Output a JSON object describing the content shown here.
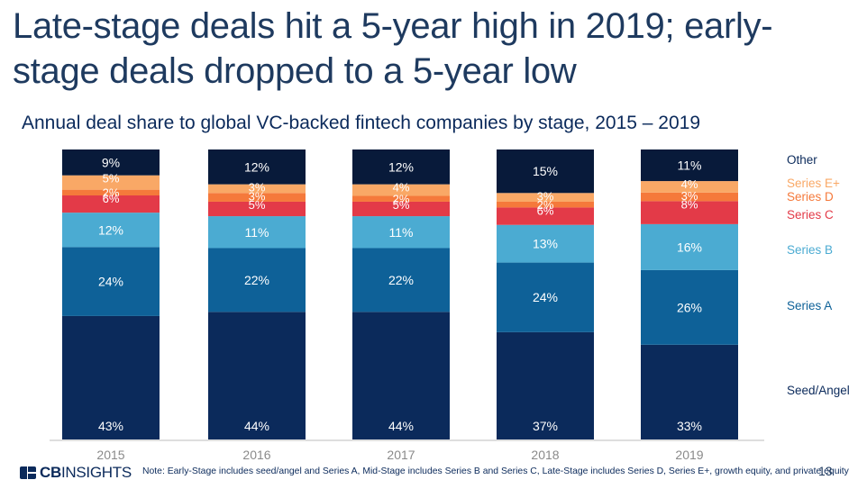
{
  "page": {
    "title": "Late-stage deals hit a 5-year high in 2019; early-stage deals dropped to a 5-year low",
    "note": "Note: Early-Stage includes seed/angel and Series A, Mid-Stage includes Series B and Series C, Late-Stage includes Series D, Series E+, growth equity, and private equity",
    "page_number": "13",
    "logo": {
      "bold": "CB",
      "rest": "INSIGHTS"
    }
  },
  "chart_data": {
    "type": "bar",
    "stacked": true,
    "title": "Annual deal share to global VC-backed fintech companies by stage, 2015 – 2019",
    "xlabel": "",
    "ylabel": "",
    "ylim": [
      0,
      100
    ],
    "grid": false,
    "legend": "right",
    "categories": [
      "2015",
      "2016",
      "2017",
      "2018",
      "2019"
    ],
    "series": [
      {
        "name": "Seed/Angel",
        "color": "#0b2a5b",
        "values": [
          43,
          44,
          44,
          37,
          33
        ],
        "labels": [
          "43%",
          "44%",
          "44%",
          "37%",
          "33%"
        ]
      },
      {
        "name": "Series A",
        "color": "#0e6198",
        "values": [
          24,
          22,
          22,
          24,
          26
        ],
        "labels": [
          "24%",
          "22%",
          "22%",
          "24%",
          "26%"
        ]
      },
      {
        "name": "Series B",
        "color": "#4babd2",
        "values": [
          12,
          11,
          11,
          13,
          16
        ],
        "labels": [
          "12%",
          "11%",
          "11%",
          "13%",
          "16%"
        ]
      },
      {
        "name": "Series C",
        "color": "#e33a48",
        "values": [
          6,
          5,
          5,
          6,
          8
        ],
        "labels": [
          "6%",
          "5%",
          "5%",
          "6%",
          "8%"
        ]
      },
      {
        "name": "Series D",
        "color": "#f5793b",
        "values": [
          2,
          3,
          2,
          2,
          3
        ],
        "labels": [
          "2%",
          "3%",
          "2%",
          "2%",
          "3%"
        ]
      },
      {
        "name": "Series E+",
        "color": "#f9a866",
        "values": [
          5,
          3,
          4,
          3,
          4
        ],
        "labels": [
          "5%",
          "3%",
          "4%",
          "3%",
          "4%"
        ]
      },
      {
        "name": "Other",
        "color": "#081a3a",
        "values": [
          9,
          12,
          12,
          15,
          11
        ],
        "labels": [
          "9%",
          "12%",
          "12%",
          "15%",
          "11%"
        ]
      }
    ]
  }
}
